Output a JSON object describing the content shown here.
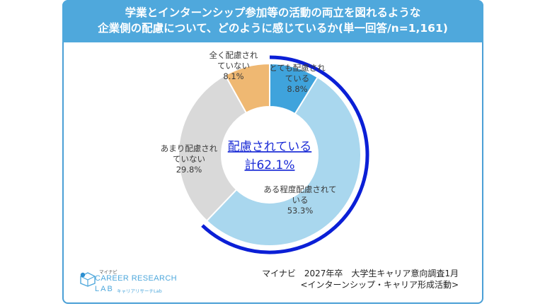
{
  "header": {
    "line1": "学業とインターンシップ参加等の活動の両立を図れるような",
    "line2": "企業側の配慮について、どのように感じているか(単一回答/n=1,161)"
  },
  "chart_data": {
    "type": "pie",
    "variant": "donut",
    "slices": [
      {
        "label": [
          "とても配慮され",
          "ている"
        ],
        "value": 8.8,
        "value_text": "8.8%",
        "color": "#3fa3dc"
      },
      {
        "label": [
          "ある程度配慮されて",
          "いる"
        ],
        "value": 53.3,
        "value_text": "53.3%",
        "color": "#a9d7ee"
      },
      {
        "label": [
          "あまり配慮され",
          "ていない"
        ],
        "value": 29.8,
        "value_text": "29.8%",
        "color": "#d9d9d9"
      },
      {
        "label": [
          "全く配慮され",
          "ていない"
        ],
        "value": 8.1,
        "value_text": "8.1%",
        "color": "#efb872"
      }
    ],
    "center_label": {
      "line1": "配慮されている",
      "line2": "計62.1%"
    },
    "highlight_arc": {
      "from_value": 0,
      "to_value": 62.1,
      "color": "#0b1fd6"
    }
  },
  "logo": {
    "small": "マイナビ",
    "main": "CAREER RESEARCH",
    "lab": "LAB",
    "sub": "キャリアリサーチLab"
  },
  "source": {
    "line1": "マイナビ　2027年卒　大学生キャリア意向調査1月",
    "line2": "<インターンシップ・キャリア形成活動>"
  }
}
